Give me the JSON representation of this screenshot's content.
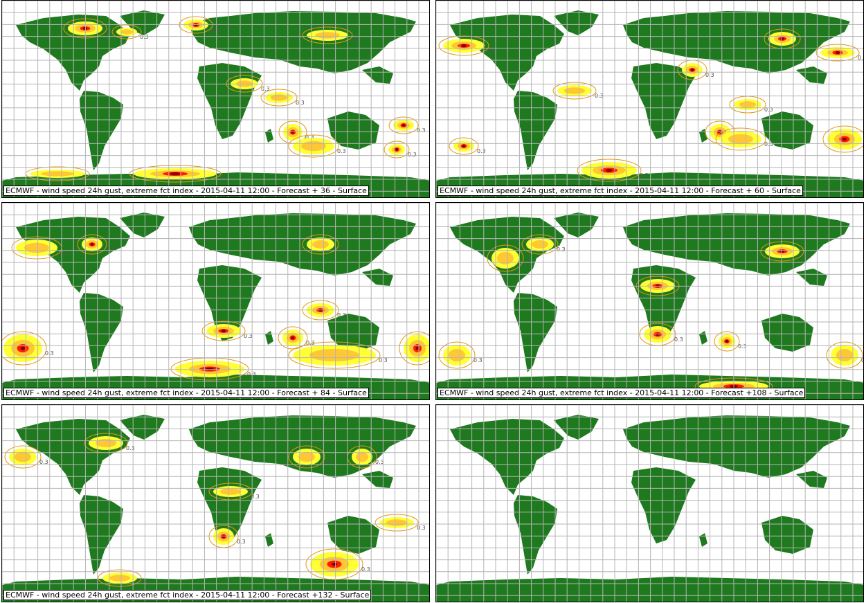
{
  "colors": {
    "land": "#1f7a1f",
    "grid": "#b5b5b5",
    "contour_line": "#e8960a",
    "fill_low": "#ffff33",
    "fill_mid": "#ffc832",
    "fill_high": "#ff1a00",
    "fill_extreme": "#7a0000"
  },
  "contour_label": "0.3",
  "panels": [
    {
      "caption": "ECMWF - wind speed 24h gust, extreme fct index - 2015-04-11 12:00 - Forecast + 36 - Surface"
    },
    {
      "caption": "ECMWF - wind speed 24h gust, extreme fct index - 2015-04-11 12:00 - Forecast + 60 - Surface"
    },
    {
      "caption": "ECMWF - wind speed 24h gust, extreme fct index - 2015-04-11 12:00 - Forecast + 84 - Surface"
    },
    {
      "caption": "ECMWF - wind speed 24h gust, extreme fct index - 2015-04-11 12:00 - Forecast +108 - Surface"
    },
    {
      "caption": "ECMWF - wind speed 24h gust, extreme fct index - 2015-04-11 12:00 - Forecast +132 - Surface"
    },
    {
      "caption": ""
    }
  ]
}
